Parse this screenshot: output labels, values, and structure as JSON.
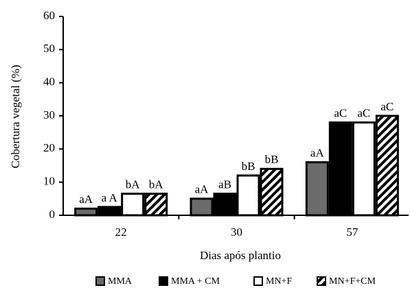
{
  "chart_data": {
    "type": "bar",
    "xlabel": "Dias após plantio",
    "ylabel": "Cobertura  vegetal (%)",
    "categories": [
      "22",
      "30",
      "57"
    ],
    "ylim": [
      0,
      60
    ],
    "yticks": [
      0,
      10,
      20,
      30,
      40,
      50,
      60
    ],
    "series": [
      {
        "name": "MMA",
        "color": "#6b6b6b",
        "values": [
          2,
          5,
          16
        ],
        "annotations": [
          "aA",
          "aA",
          "aA"
        ]
      },
      {
        "name": "MMA + CM",
        "color": "#000000",
        "values": [
          2.5,
          6.5,
          28
        ],
        "annotations": [
          "a A",
          "aB",
          "aC"
        ]
      },
      {
        "name": "MN+F",
        "color": "#ffffff",
        "values": [
          6.5,
          12,
          28
        ],
        "annotations": [
          "bA",
          "bB",
          "aC"
        ]
      },
      {
        "name": "MN+F+CM",
        "color": "hatch",
        "values": [
          6.5,
          14,
          30
        ],
        "annotations": [
          "bA",
          "bB",
          "aC"
        ]
      }
    ]
  }
}
